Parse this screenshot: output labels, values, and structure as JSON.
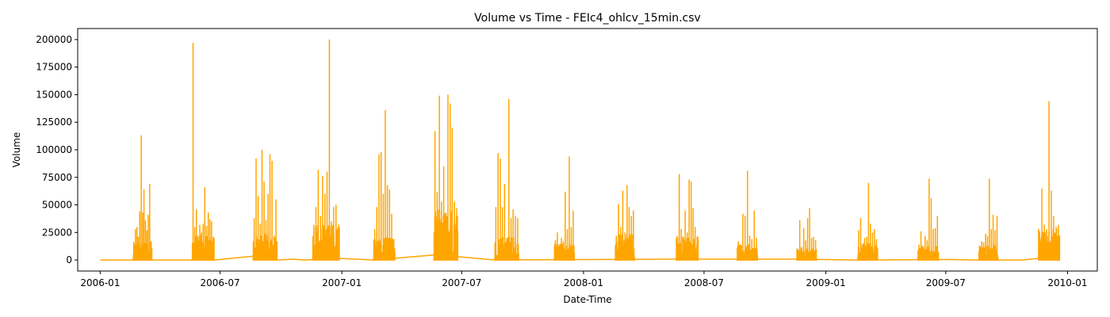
{
  "chart_data": {
    "type": "line",
    "title": "Volume vs Time - FEIc4_ohlcv_15min.csv",
    "xlabel": "Date-Time",
    "ylabel": "Volume",
    "xlim": [
      "2005-11-28",
      "2010-02-15"
    ],
    "ylim": [
      -10000,
      210000
    ],
    "x_ticks": [
      "2006-01",
      "2006-07",
      "2007-01",
      "2007-07",
      "2008-01",
      "2008-07",
      "2009-01",
      "2009-07",
      "2010-01"
    ],
    "y_ticks": [
      0,
      25000,
      50000,
      75000,
      100000,
      125000,
      150000,
      175000,
      200000
    ],
    "grid": false,
    "legend": "none",
    "series": [
      {
        "color": "#FFA500",
        "bursts": [
          {
            "start": "2006-02-20",
            "end": "2006-03-20",
            "peaks": [
              15000,
              28000,
              30000,
              21000,
              44000,
              113000,
              43000,
              64000,
              36000,
              27000,
              41000,
              69000,
              17000
            ]
          },
          {
            "start": "2006-05-20",
            "end": "2006-06-22",
            "peaks": [
              197000,
              30000,
              46000,
              22000,
              32000,
              25000,
              33000,
              66000,
              31000,
              43000,
              37000,
              35000,
              21000
            ]
          },
          {
            "start": "2006-08-20",
            "end": "2006-09-25",
            "peaks": [
              38000,
              92000,
              58000,
              33000,
              100000,
              71000,
              36000,
              60000,
              96000,
              90000,
              22000,
              55000
            ]
          },
          {
            "start": "2006-11-18",
            "end": "2006-12-28",
            "peaks": [
              32000,
              48000,
              82000,
              40000,
              76000,
              60000,
              80000,
              200000,
              35000,
              48000,
              50000,
              30000
            ]
          },
          {
            "start": "2007-02-18",
            "end": "2007-03-22",
            "peaks": [
              28000,
              48000,
              96000,
              98000,
              60000,
              136000,
              68000,
              64000,
              42000,
              19000
            ]
          },
          {
            "start": "2007-05-20",
            "end": "2007-06-25",
            "peaks": [
              117000,
              62000,
              149000,
              53000,
              85000,
              43000,
              150000,
              142000,
              120000,
              53000,
              47000
            ]
          },
          {
            "start": "2007-08-20",
            "end": "2007-09-25",
            "peaks": [
              48000,
              97000,
              92000,
              48000,
              69000,
              20000,
              146000,
              38000,
              46000,
              40000,
              38000
            ]
          },
          {
            "start": "2007-11-18",
            "end": "2007-12-18",
            "peaks": [
              18000,
              25000,
              14000,
              20000,
              17000,
              62000,
              28000,
              94000,
              30000,
              45000
            ]
          },
          {
            "start": "2008-02-18",
            "end": "2008-03-18",
            "peaks": [
              22000,
              51000,
              30000,
              63000,
              25000,
              68000,
              48000,
              40000,
              45000
            ]
          },
          {
            "start": "2008-05-20",
            "end": "2008-06-22",
            "peaks": [
              22000,
              78000,
              28000,
              20000,
              45000,
              25000,
              73000,
              71000,
              47000,
              30000,
              21000
            ]
          },
          {
            "start": "2008-08-20",
            "end": "2008-09-20",
            "peaks": [
              17000,
              13000,
              42000,
              40000,
              81000,
              22000,
              19000,
              45000,
              20000
            ]
          },
          {
            "start": "2008-11-18",
            "end": "2008-12-18",
            "peaks": [
              10000,
              36000,
              12000,
              29000,
              18000,
              38000,
              47000,
              20000,
              21000,
              18000
            ]
          },
          {
            "start": "2009-02-18",
            "end": "2009-03-20",
            "peaks": [
              27000,
              38000,
              14000,
              20000,
              21000,
              70000,
              33000,
              25000,
              28000,
              19000
            ]
          },
          {
            "start": "2009-05-20",
            "end": "2009-06-20",
            "peaks": [
              14000,
              26000,
              12000,
              22000,
              18000,
              74000,
              56000,
              28000,
              29000,
              40000
            ]
          },
          {
            "start": "2009-08-20",
            "end": "2009-09-18",
            "peaks": [
              13000,
              17000,
              16000,
              24000,
              22000,
              74000,
              28000,
              41000,
              27000,
              40000
            ]
          },
          {
            "start": "2009-11-18",
            "end": "2009-12-20",
            "peaks": [
              26000,
              65000,
              32000,
              28000,
              144000,
              63000,
              40000,
              30000,
              32000
            ]
          }
        ],
        "baseline_path": [
          [
            "2006-01-01",
            0
          ],
          [
            "2006-02-20",
            0
          ],
          [
            "2006-06-22",
            0
          ],
          [
            "2006-08-20",
            3500
          ],
          [
            "2006-09-25",
            0
          ],
          [
            "2006-10-20",
            800
          ],
          [
            "2006-11-05",
            0
          ],
          [
            "2006-12-28",
            1500
          ],
          [
            "2007-02-18",
            0
          ],
          [
            "2007-05-20",
            4500
          ],
          [
            "2007-06-25",
            3000
          ],
          [
            "2007-08-20",
            0
          ],
          [
            "2008-05-20",
            800
          ],
          [
            "2008-11-18",
            800
          ],
          [
            "2009-02-18",
            0
          ],
          [
            "2009-07-05",
            500
          ],
          [
            "2009-08-20",
            0
          ],
          [
            "2009-10-25",
            0
          ],
          [
            "2009-11-18",
            1500
          ],
          [
            "2009-12-20",
            0
          ]
        ]
      }
    ]
  }
}
